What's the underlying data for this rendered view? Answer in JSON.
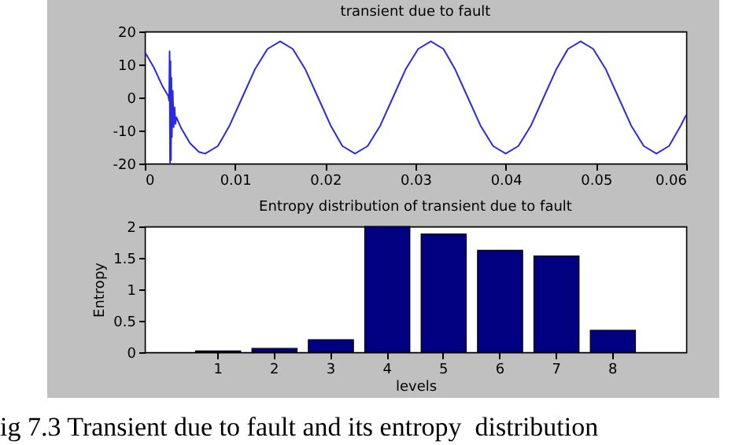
{
  "chart_data": [
    {
      "type": "line",
      "title": "transient due to fault",
      "xlim": [
        0,
        0.06
      ],
      "xticks": [
        0,
        0.01,
        0.02,
        0.03,
        0.04,
        0.05,
        0.06
      ],
      "ylim": [
        -20,
        20
      ],
      "yticks": [
        -20,
        -10,
        0,
        10,
        20
      ],
      "grid": false,
      "legend": false,
      "marker": "none",
      "line_style": "solid",
      "x": [
        0,
        0.001,
        0.002,
        0.0026,
        0.0027,
        0.00275,
        0.0028,
        0.00285,
        0.0029,
        0.00295,
        0.003,
        0.0031,
        0.0032,
        0.0033,
        0.0034,
        0.0035,
        0.004,
        0.005,
        0.006,
        0.0067,
        0.0081,
        0.0094,
        0.0108,
        0.0122,
        0.0136,
        0.015,
        0.0164,
        0.0178,
        0.0192,
        0.0206,
        0.0219,
        0.0233,
        0.0247,
        0.0261,
        0.0275,
        0.0289,
        0.0303,
        0.0317,
        0.0331,
        0.0344,
        0.0358,
        0.0372,
        0.0386,
        0.04,
        0.0414,
        0.0428,
        0.0442,
        0.0456,
        0.0469,
        0.0483,
        0.0497,
        0.0511,
        0.0525,
        0.0539,
        0.0553,
        0.0567,
        0.0581,
        0.0594,
        0.06
      ],
      "series": [
        {
          "color": "#2a2ae0",
          "values": [
            13.8,
            9.1,
            3.2,
            0.5,
            -1,
            14,
            -20,
            11,
            -19,
            6,
            -12,
            2,
            -9,
            -3,
            -8,
            -6,
            -9.1,
            -13.8,
            -16.5,
            -17,
            -14.7,
            -8.5,
            0,
            8.5,
            14.7,
            17,
            14.7,
            8.5,
            0,
            -8.5,
            -14.7,
            -17,
            -14.7,
            -8.5,
            0,
            8.5,
            14.7,
            17,
            14.7,
            8.5,
            0,
            -8.5,
            -14.7,
            -17,
            -14.7,
            -8.5,
            0,
            8.5,
            14.7,
            17,
            14.7,
            8.5,
            0,
            -8.5,
            -14.7,
            -17,
            -14.7,
            -8.5,
            -5.3
          ]
        }
      ]
    },
    {
      "type": "bar",
      "title": "Entropy distribution of transient due to fault",
      "xlabel": "levels",
      "ylabel": "Entropy",
      "categories": [
        "1",
        "2",
        "3",
        "4",
        "5",
        "6",
        "7",
        "8"
      ],
      "ylim": [
        0,
        2
      ],
      "yticks": [
        0,
        0.5,
        1,
        1.5,
        2
      ],
      "grid": false,
      "legend": false,
      "series": [
        {
          "color": "#000080",
          "values": [
            0.02,
            0.06,
            0.2,
            2.0,
            1.88,
            1.62,
            1.53,
            0.35
          ]
        }
      ],
      "annotations": [
        "ig 7.3 Transient due to fault and its entropy  distribution"
      ]
    }
  ]
}
